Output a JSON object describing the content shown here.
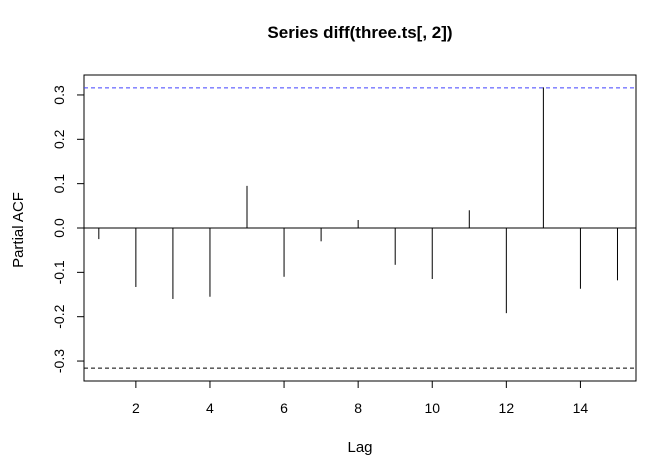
{
  "chart_data": {
    "type": "bar",
    "title": "Series  diff(three.ts[, 2])",
    "xlabel": "Lag",
    "ylabel": "Partial ACF",
    "xlim": [
      0.6,
      15.5
    ],
    "ylim": [
      -0.345,
      0.345
    ],
    "x_ticks": [
      "2",
      "4",
      "6",
      "8",
      "10",
      "12",
      "14"
    ],
    "y_ticks": [
      "-0.3",
      "-0.2",
      "-0.1",
      "0.0",
      "0.1",
      "0.2",
      "0.3"
    ],
    "lags": [
      1,
      2,
      3,
      4,
      5,
      6,
      7,
      8,
      9,
      10,
      11,
      12,
      13,
      14,
      15
    ],
    "values": [
      -0.025,
      -0.133,
      -0.16,
      -0.155,
      0.095,
      -0.11,
      -0.03,
      0.018,
      -0.083,
      -0.115,
      0.04,
      -0.192,
      0.317,
      -0.137,
      -0.118
    ],
    "confidence_bound": 0.316,
    "colors": {
      "upper_bound": "#4040ff",
      "lower_bound": "#000000",
      "bars": "#000000"
    }
  }
}
